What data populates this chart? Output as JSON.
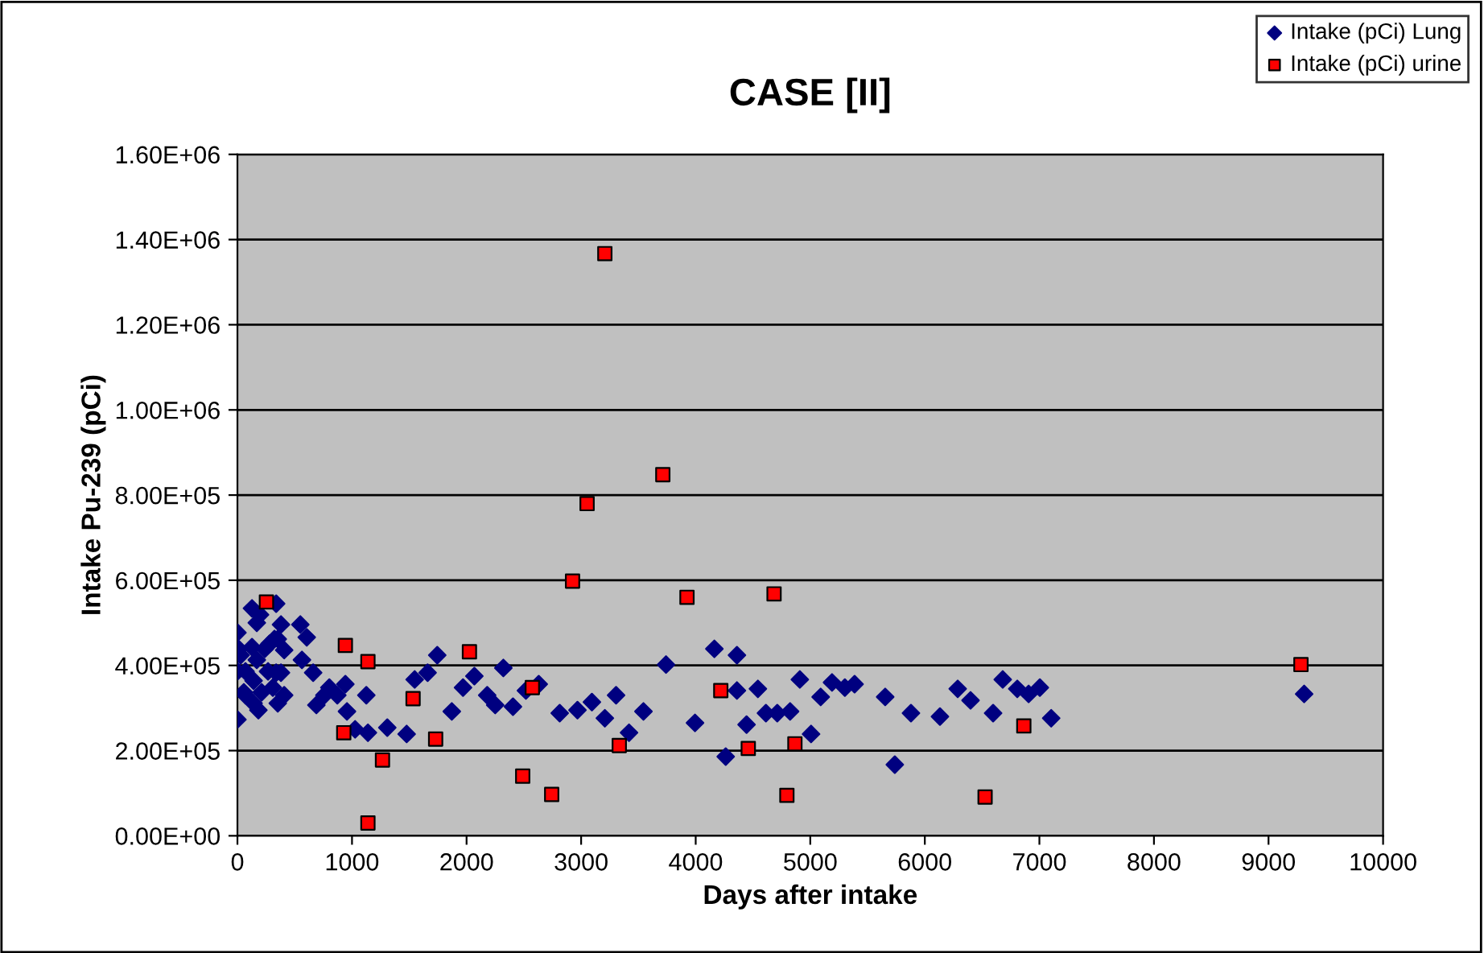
{
  "chart_data": {
    "type": "scatter",
    "title": "CASE [II]",
    "xlabel": "Days after intake",
    "ylabel": "Intake Pu-239 (pCi)",
    "xlim": [
      0,
      10000
    ],
    "xticks": [
      0,
      1000,
      2000,
      3000,
      4000,
      5000,
      6000,
      7000,
      8000,
      9000,
      10000
    ],
    "ylim": [
      0,
      1600000
    ],
    "yticks": [
      {
        "value": 0,
        "label": "0.00E+00"
      },
      {
        "value": 200000,
        "label": "2.00E+05"
      },
      {
        "value": 400000,
        "label": "4.00E+05"
      },
      {
        "value": 600000,
        "label": "6.00E+05"
      },
      {
        "value": 800000,
        "label": "8.00E+05"
      },
      {
        "value": 1000000,
        "label": "1.00E+06"
      },
      {
        "value": 1200000,
        "label": "1.20E+06"
      },
      {
        "value": 1400000,
        "label": "1.40E+06"
      },
      {
        "value": 1600000,
        "label": "1.60E+06"
      }
    ],
    "grid": "y",
    "legend": "top right",
    "series": [
      {
        "name": "Intake (pCi) Lung",
        "color": "#000080",
        "marker": "diamond",
        "x": [
          3741,
          4163,
          4360,
          3305,
          3544,
          3418,
          3994,
          4360,
          4543,
          4262,
          4444,
          4613,
          4712,
          4824,
          4909,
          5007,
          5091,
          5190,
          5302,
          5387,
          5654,
          5738,
          5879,
          6132,
          6287,
          6399,
          6596,
          6680,
          6807,
          6906,
          7004,
          7103,
          9311,
          1744,
          1547,
          1660,
          1969,
          2068,
          2321,
          2180,
          2250,
          2405,
          2518,
          2630,
          2813,
          2968,
          3094,
          3207,
          1871,
          1125,
          956,
          1027,
          1139,
          1308,
          1477,
          942,
          872,
          802,
          759,
          689,
          661,
          563,
          605,
          549,
          380,
          338,
          127,
          197,
          323,
          408,
          380,
          408,
          352,
          183,
          0,
          0,
          28,
          70,
          56,
          141,
          169,
          239,
          267,
          309,
          338,
          127,
          169,
          281,
          0,
          10,
          70,
          211,
          352,
          141
        ],
        "values": [
          402000,
          439000,
          424000,
          330000,
          292000,
          242000,
          265000,
          341000,
          345000,
          186000,
          261000,
          288000,
          288000,
          292000,
          367000,
          239000,
          326000,
          360000,
          348000,
          356000,
          326000,
          167000,
          288000,
          280000,
          345000,
          318000,
          288000,
          367000,
          345000,
          333000,
          348000,
          276000,
          333000,
          424000,
          367000,
          383000,
          348000,
          375000,
          394000,
          330000,
          307000,
          303000,
          341000,
          356000,
          288000,
          295000,
          314000,
          276000,
          292000,
          330000,
          292000,
          250000,
          242000,
          254000,
          239000,
          356000,
          330000,
          348000,
          330000,
          307000,
          383000,
          413000,
          466000,
          496000,
          496000,
          545000,
          534000,
          519000,
          462000,
          436000,
          383000,
          330000,
          311000,
          295000,
          273000,
          477000,
          424000,
          386000,
          337000,
          364000,
          413000,
          439000,
          386000,
          348000,
          383000,
          443000,
          500000,
          451000,
          386000,
          439000,
          330000,
          337000,
          462000,
          311000
        ]
      },
      {
        "name": "Intake (pCi) urine",
        "color": "#ff0000",
        "marker": "square",
        "x": [
          253,
          942,
          1139,
          1533,
          928,
          1730,
          1266,
          2025,
          2574,
          2925,
          3052,
          3333,
          2490,
          3207,
          2743,
          1139,
          3713,
          3924,
          4684,
          4219,
          4459,
          4866,
          6864,
          4796,
          6526,
          9283
        ],
        "values": [
          549000,
          447000,
          409000,
          322000,
          242000,
          227000,
          178000,
          432000,
          348000,
          598000,
          780000,
          212000,
          140000,
          1367000,
          97000,
          30000,
          848000,
          560000,
          568000,
          341000,
          205000,
          216000,
          258000,
          95000,
          91000,
          402000
        ]
      }
    ]
  }
}
